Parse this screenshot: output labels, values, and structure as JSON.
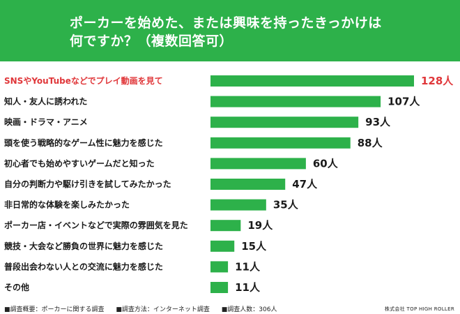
{
  "header": {
    "title_line_1": "ポーカーを始めた、または興味を持ったきっかけは",
    "title_line_2": "何ですか？（複数回答可）"
  },
  "colors": {
    "header_bg": "#2db14a",
    "bar": "#2db14a",
    "highlight_text": "#e0373a",
    "text": "#1a1a1a"
  },
  "chart_data": {
    "type": "bar",
    "orientation": "horizontal",
    "categories": [
      "SNSやYouTubeなどでプレイ動画を見て",
      "知人・友人に誘われた",
      "映画・ドラマ・アニメ",
      "頭を使う戦略的なゲーム性に魅力を感じた",
      "初心者でも始めやすいゲームだと知った",
      "自分の判断力や駆け引きを試してみたかった",
      "非日常的な体験を楽しみたかった",
      "ポーカー店・イベントなどで実際の雰囲気を見た",
      "競技・大会など勝負の世界に魅力を感じた",
      "普段出会わない人との交流に魅力を感じた",
      "その他"
    ],
    "values": [
      128,
      107,
      93,
      88,
      60,
      47,
      35,
      19,
      15,
      11,
      11
    ],
    "value_unit": "人",
    "highlight_index": 0,
    "xlim": [
      0,
      128
    ],
    "grid": false
  },
  "footer": {
    "survey_summary": "■調査概要：ポーカーに関する調査",
    "survey_method": "■調査方法：インターネット調査",
    "survey_count": "■調査人数：306人",
    "brand": "株式会社 TOP HIGH ROLLER"
  }
}
